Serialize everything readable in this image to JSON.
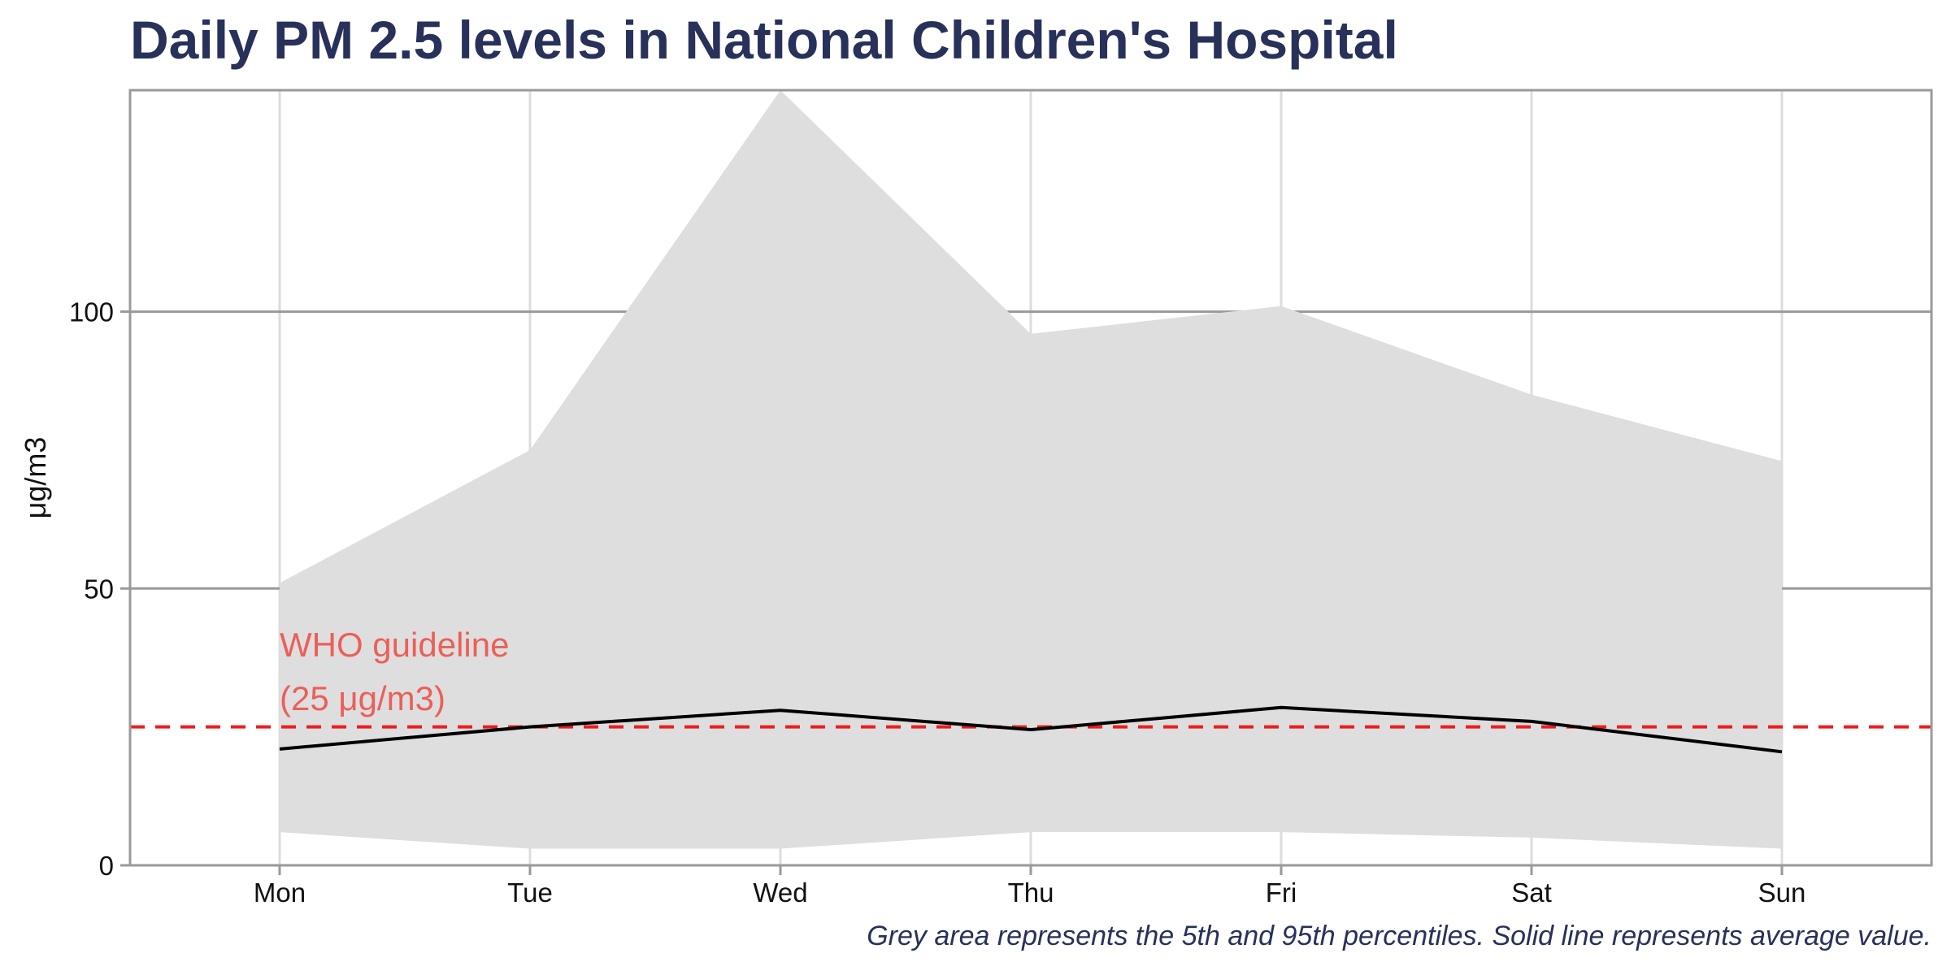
{
  "chart_data": {
    "type": "area",
    "title": "Daily PM 2.5 levels in National Children's Hospital",
    "xlabel": "",
    "ylabel": "μg/m3",
    "caption": "Grey area represents the 5th and 95th percentiles. Solid line represents average value.",
    "categories": [
      "Mon",
      "Tue",
      "Wed",
      "Thu",
      "Fri",
      "Sat",
      "Sun"
    ],
    "ylim": [
      0,
      140
    ],
    "y_ticks": [
      0,
      50,
      100
    ],
    "grid": true,
    "band": {
      "p5": [
        6,
        3,
        3,
        6,
        6,
        5,
        3
      ],
      "p95": [
        51,
        75,
        140,
        96,
        101,
        85,
        73
      ],
      "color": "#dedede"
    },
    "series": [
      {
        "values": [
          21,
          25,
          28,
          24.5,
          28.5,
          26,
          20.5
        ],
        "color": "#000000"
      }
    ],
    "reference_line": {
      "value": 25,
      "color": "#ee1c1c",
      "label_line1": "WHO guideline",
      "label_line2": "(25 μg/m3)",
      "label_color": "#ec5f59"
    }
  }
}
